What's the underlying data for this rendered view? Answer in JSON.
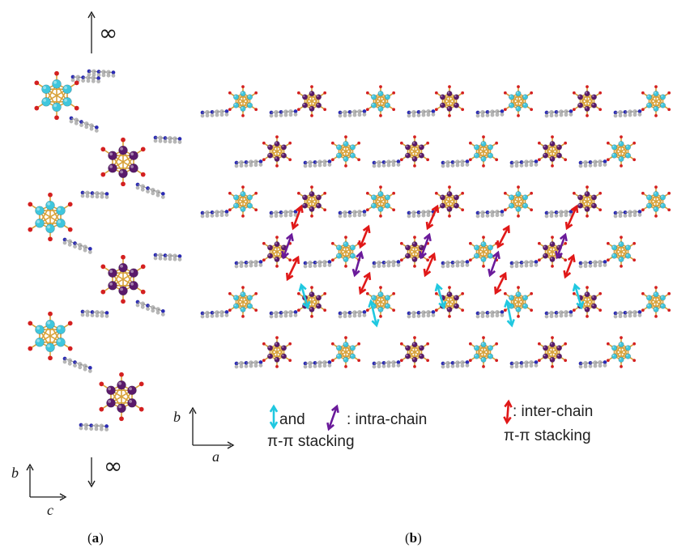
{
  "panel_a": {
    "label_open": "(",
    "label_letter": "a",
    "label_close": ")",
    "infinity_top": "∞",
    "infinity_bottom": "∞",
    "axis_b": "b",
    "axis_c": "c"
  },
  "panel_b": {
    "label_open": "(",
    "label_letter": "b",
    "label_close": ")",
    "axis_b": "b",
    "axis_a": "a"
  },
  "legend": {
    "intra_and": "and",
    "intra_text": ": intra-chain",
    "intra_text2": "π-π stacking",
    "inter_text": ": inter-chain",
    "inter_text2": "π-π stacking"
  },
  "colors": {
    "cyan_atom": "#3fc6dd",
    "purple_atom": "#5a1a6b",
    "oxygen": "#d42020",
    "bond": "#d8a23a",
    "ligand": "#b8b8b8",
    "nitrogen": "#2a2ab8",
    "arrow_cyan": "#20c8e0",
    "arrow_purple": "#6a1a9a",
    "arrow_red": "#e01818"
  }
}
